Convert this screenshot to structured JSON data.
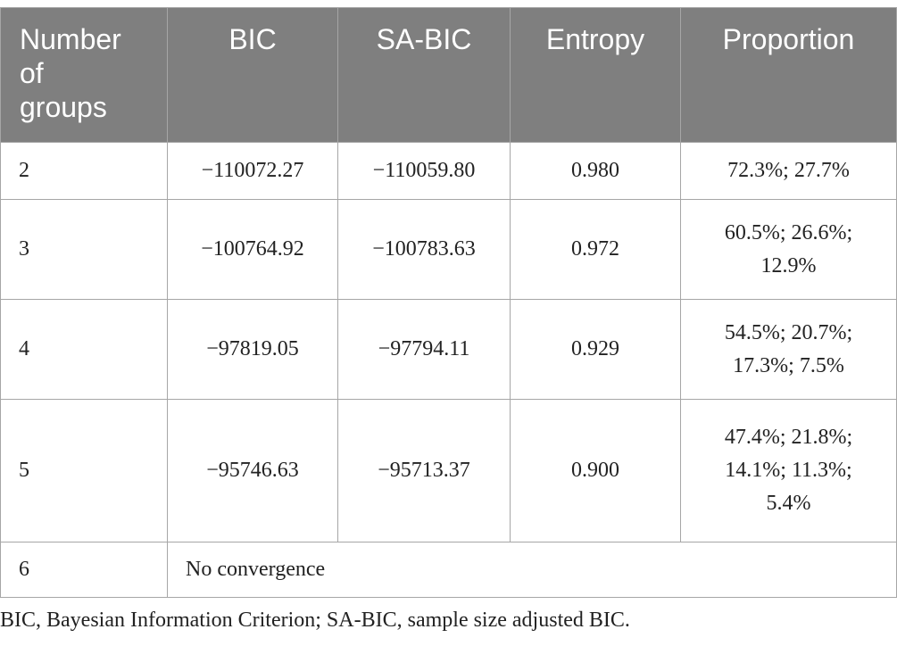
{
  "table": {
    "headers": [
      "Number\nof\ngroups",
      "BIC",
      "SA-BIC",
      "Entropy",
      "Proportion"
    ],
    "rows": [
      {
        "groups": "2",
        "bic": "−110072.27",
        "sabic": "−110059.80",
        "entropy": "0.980",
        "proportion": "72.3%; 27.7%"
      },
      {
        "groups": "3",
        "bic": "−100764.92",
        "sabic": "−100783.63",
        "entropy": "0.972",
        "proportion": "60.5%; 26.6%;\n12.9%"
      },
      {
        "groups": "4",
        "bic": "−97819.05",
        "sabic": "−97794.11",
        "entropy": "0.929",
        "proportion": "54.5%; 20.7%;\n17.3%; 7.5%"
      },
      {
        "groups": "5",
        "bic": "−95746.63",
        "sabic": "−95713.37",
        "entropy": "0.900",
        "proportion": "47.4%; 21.8%;\n14.1%; 11.3%;\n5.4%"
      },
      {
        "groups": "6",
        "note": "No convergence"
      }
    ]
  },
  "footnote": "BIC, Bayesian Information Criterion; SA-BIC, sample size adjusted BIC."
}
